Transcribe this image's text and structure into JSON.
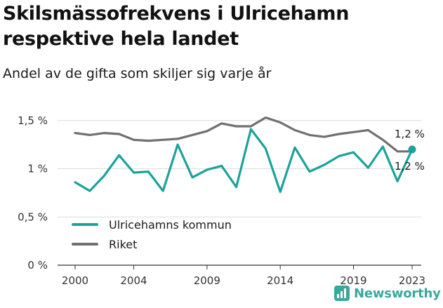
{
  "header": {
    "title": "Skilsmässofrekvens i Ulricehamn respektive hela landet",
    "subtitle": "Andel av de gifta som skiljer sig varje år"
  },
  "brand": {
    "name": "Newsworthy",
    "icon": "newsworthy-logo-icon",
    "color": "#3aa89c"
  },
  "chart_data": {
    "type": "line",
    "x": [
      2000,
      2001,
      2002,
      2003,
      2004,
      2005,
      2006,
      2007,
      2008,
      2009,
      2010,
      2011,
      2012,
      2013,
      2014,
      2015,
      2016,
      2017,
      2018,
      2019,
      2020,
      2021,
      2022,
      2023
    ],
    "series": [
      {
        "name": "Ulricehamns kommun",
        "color": "#1aa39a",
        "values": [
          0.86,
          0.77,
          0.93,
          1.14,
          0.96,
          0.97,
          0.77,
          1.25,
          0.91,
          0.99,
          1.03,
          0.81,
          1.41,
          1.21,
          0.76,
          1.22,
          0.97,
          1.04,
          1.13,
          1.17,
          1.01,
          1.23,
          0.87,
          1.2
        ]
      },
      {
        "name": "Riket",
        "color": "#707070",
        "values": [
          1.37,
          1.35,
          1.37,
          1.36,
          1.3,
          1.29,
          1.3,
          1.31,
          1.35,
          1.39,
          1.47,
          1.44,
          1.44,
          1.53,
          1.48,
          1.4,
          1.35,
          1.33,
          1.36,
          1.38,
          1.4,
          1.3,
          1.18,
          1.18
        ]
      }
    ],
    "y_ticks": [
      {
        "value": 0,
        "label": "0 %"
      },
      {
        "value": 0.5,
        "label": "0,5 %"
      },
      {
        "value": 1,
        "label": "1 %"
      },
      {
        "value": 1.5,
        "label": "1,5 %"
      }
    ],
    "x_ticks": [
      2000,
      2004,
      2009,
      2014,
      2019,
      2023
    ],
    "ylim": [
      0,
      1.6
    ],
    "xlim": [
      2000,
      2023
    ],
    "end_labels": [
      "1,2 %",
      "1,2 %"
    ],
    "legend": {
      "placement": "bottom-left"
    },
    "grid": true
  }
}
